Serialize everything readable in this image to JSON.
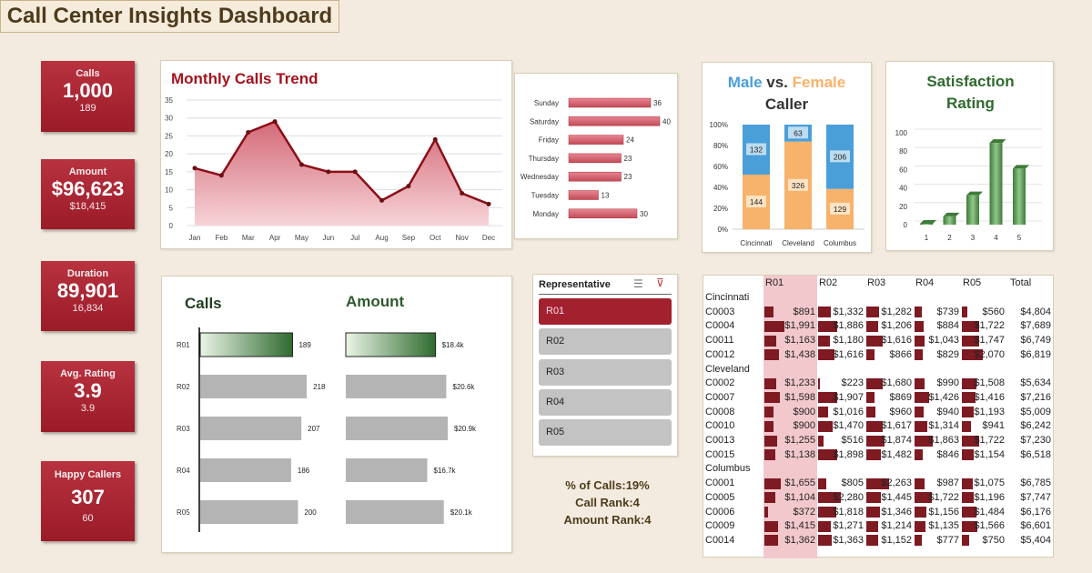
{
  "title": "Call Center Insights Dashboard",
  "colors": {
    "accent": "#a3212f",
    "male": "#4a9fd8",
    "female": "#f7b26b",
    "green": "#3f7a3a",
    "bar_gray": "#b4b4b4",
    "day_bar": "#d9616f"
  },
  "kpis": [
    {
      "label": "Calls",
      "value": "1,000",
      "sub": "189"
    },
    {
      "label": "Amount",
      "value": "$96,623",
      "sub": "$18,415"
    },
    {
      "label": "Duration",
      "value": "89,901",
      "sub": "16,834"
    },
    {
      "label": "Avg. Rating",
      "value": "3.9",
      "sub": "3.9"
    },
    {
      "label": "Happy Callers",
      "value": "307",
      "sub": "60"
    }
  ],
  "chart_data": [
    {
      "id": "trend",
      "type": "area",
      "title": "Monthly Calls Trend",
      "categories": [
        "Jan",
        "Feb",
        "Mar",
        "Apr",
        "May",
        "Jun",
        "Jul",
        "Aug",
        "Sep",
        "Oct",
        "Nov",
        "Dec"
      ],
      "values": [
        16,
        14,
        26,
        29,
        17,
        15,
        15,
        7,
        11,
        24,
        9,
        6
      ],
      "ylim": [
        0,
        35
      ],
      "yticks": [
        0,
        5,
        10,
        15,
        20,
        25,
        30,
        35
      ],
      "grid": true
    },
    {
      "id": "days",
      "type": "bar",
      "orientation": "horizontal",
      "categories": [
        "Sunday",
        "Saturday",
        "Friday",
        "Thursday",
        "Wednesday",
        "Tuesday",
        "Monday"
      ],
      "values": [
        36,
        40,
        24,
        23,
        23,
        13,
        30
      ]
    },
    {
      "id": "gender",
      "type": "bar",
      "stacked": "percent",
      "title_parts": [
        "Male",
        " vs. ",
        "Female",
        "Caller"
      ],
      "categories": [
        "Cincinnati",
        "Cleveland",
        "Columbus"
      ],
      "series": [
        {
          "name": "Female",
          "values": [
            144,
            326,
            129
          ]
        },
        {
          "name": "Male",
          "values": [
            132,
            63,
            206
          ]
        }
      ],
      "yticks": [
        "0%",
        "20%",
        "40%",
        "60%",
        "80%",
        "100%"
      ]
    },
    {
      "id": "satisfaction",
      "type": "bar",
      "title": "Satisfaction Rating",
      "categories": [
        "1",
        "2",
        "3",
        "4",
        "5"
      ],
      "values": [
        1,
        9,
        32,
        89,
        61
      ],
      "ylim": [
        0,
        100
      ],
      "yticks": [
        0,
        20,
        40,
        60,
        80,
        100
      ],
      "grid": true
    },
    {
      "id": "rep_calls",
      "type": "bar",
      "orientation": "horizontal",
      "title": "Calls",
      "categories": [
        "R01",
        "R02",
        "R03",
        "R04",
        "R05"
      ],
      "values": [
        189,
        218,
        207,
        186,
        200
      ],
      "labels": [
        "189",
        "218",
        "207",
        "186",
        "200"
      ],
      "highlight": "R01"
    },
    {
      "id": "rep_amount",
      "type": "bar",
      "orientation": "horizontal",
      "title": "Amount",
      "categories": [
        "R01",
        "R02",
        "R03",
        "R04",
        "R05"
      ],
      "values": [
        18.4,
        20.6,
        20.9,
        16.7,
        20.1
      ],
      "labels": [
        "$18.4k",
        "$20.6k",
        "$20.9k",
        "$16.7k",
        "$20.1k"
      ],
      "highlight": "R01"
    }
  ],
  "slicer": {
    "title": "Representative",
    "items": [
      "R01",
      "R02",
      "R03",
      "R04",
      "R05"
    ],
    "selected": "R01"
  },
  "stats": [
    "% of Calls:19%",
    "Call Rank:4",
    "Amount Rank:4"
  ],
  "table": {
    "headers": [
      "R01",
      "R02",
      "R03",
      "R04",
      "R05",
      "Total"
    ],
    "highlight_column": "R01",
    "groups": [
      {
        "city": "Cincinnati",
        "rows": [
          {
            "id": "C0003",
            "v": [
              891,
              1332,
              1282,
              739,
              560
            ],
            "cells": [
              "$891",
              "$1,332",
              "$1,282",
              "$739",
              "$560",
              "$4,804"
            ]
          },
          {
            "id": "C0004",
            "v": [
              1991,
              1886,
              1206,
              884,
              1722
            ],
            "cells": [
              "$1,991",
              "$1,886",
              "$1,206",
              "$884",
              "$1,722",
              "$7,689"
            ]
          },
          {
            "id": "C0011",
            "v": [
              1163,
              1180,
              1616,
              1043,
              1747
            ],
            "cells": [
              "$1,163",
              "$1,180",
              "$1,616",
              "$1,043",
              "$1,747",
              "$6,749"
            ]
          },
          {
            "id": "C0012",
            "v": [
              1438,
              1616,
              866,
              829,
              2070
            ],
            "cells": [
              "$1,438",
              "$1,616",
              "$866",
              "$829",
              "$2,070",
              "$6,819"
            ]
          }
        ]
      },
      {
        "city": "Cleveland",
        "rows": [
          {
            "id": "C0002",
            "v": [
              1233,
              223,
              1680,
              990,
              1508
            ],
            "cells": [
              "$1,233",
              "$223",
              "$1,680",
              "$990",
              "$1,508",
              "$5,634"
            ]
          },
          {
            "id": "C0007",
            "v": [
              1598,
              1907,
              869,
              1426,
              1416
            ],
            "cells": [
              "$1,598",
              "$1,907",
              "$869",
              "$1,426",
              "$1,416",
              "$7,216"
            ]
          },
          {
            "id": "C0008",
            "v": [
              900,
              1016,
              960,
              940,
              1193
            ],
            "cells": [
              "$900",
              "$1,016",
              "$960",
              "$940",
              "$1,193",
              "$5,009"
            ]
          },
          {
            "id": "C0010",
            "v": [
              900,
              1470,
              1617,
              1314,
              941
            ],
            "cells": [
              "$900",
              "$1,470",
              "$1,617",
              "$1,314",
              "$941",
              "$6,242"
            ]
          },
          {
            "id": "C0013",
            "v": [
              1255,
              516,
              1874,
              1863,
              1722
            ],
            "cells": [
              "$1,255",
              "$516",
              "$1,874",
              "$1,863",
              "$1,722",
              "$7,230"
            ]
          },
          {
            "id": "C0015",
            "v": [
              1138,
              1898,
              1482,
              846,
              1154
            ],
            "cells": [
              "$1,138",
              "$1,898",
              "$1,482",
              "$846",
              "$1,154",
              "$6,518"
            ]
          }
        ]
      },
      {
        "city": "Columbus",
        "rows": [
          {
            "id": "C0001",
            "v": [
              1655,
              805,
              2263,
              987,
              1075
            ],
            "cells": [
              "$1,655",
              "$805",
              "$2,263",
              "$987",
              "$1,075",
              "$6,785"
            ]
          },
          {
            "id": "C0005",
            "v": [
              1104,
              2280,
              1445,
              1722,
              1196
            ],
            "cells": [
              "$1,104",
              "$2,280",
              "$1,445",
              "$1,722",
              "$1,196",
              "$7,747"
            ]
          },
          {
            "id": "C0006",
            "v": [
              372,
              1818,
              1346,
              1156,
              1484
            ],
            "cells": [
              "$372",
              "$1,818",
              "$1,346",
              "$1,156",
              "$1,484",
              "$6,176"
            ]
          },
          {
            "id": "C0009",
            "v": [
              1415,
              1271,
              1214,
              1135,
              1566
            ],
            "cells": [
              "$1,415",
              "$1,271",
              "$1,214",
              "$1,135",
              "$1,566",
              "$6,601"
            ]
          },
          {
            "id": "C0014",
            "v": [
              1362,
              1363,
              1152,
              777,
              750
            ],
            "cells": [
              "$1,362",
              "$1,363",
              "$1,152",
              "$777",
              "$750",
              "$5,404"
            ]
          }
        ]
      }
    ]
  }
}
